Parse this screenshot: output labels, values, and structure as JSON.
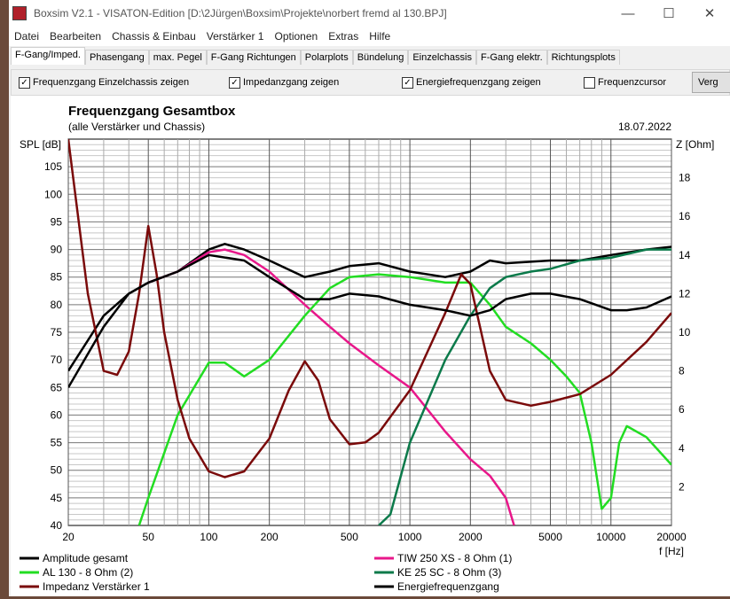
{
  "window": {
    "title": "Boxsim V2.1 - VISATON-Edition [D:\\2Jürgen\\Boxsim\\Projekte\\norbert fremd al 130.BPJ]",
    "min": "—",
    "max": "☐",
    "close": "✕"
  },
  "menu": [
    "Datei",
    "Bearbeiten",
    "Chassis & Einbau",
    "Verstärker 1",
    "Optionen",
    "Extras",
    "Hilfe"
  ],
  "tabs": [
    "F-Gang/Imped.",
    "Phasengang",
    "max. Pegel",
    "F-Gang Richtungen",
    "Polarplots",
    "Bündelung",
    "Einzelchassis",
    "F-Gang elektr.",
    "Richtungsplots"
  ],
  "checks": [
    {
      "label": "Frequenzgang Einzelchassis zeigen",
      "checked": true
    },
    {
      "label": "Impedanzgang zeigen",
      "checked": true
    },
    {
      "label": "Energiefrequenzgang zeigen",
      "checked": true
    },
    {
      "label": "Frequenzcursor",
      "checked": false
    }
  ],
  "compare_button": "Verg",
  "chart_data": {
    "type": "line",
    "title": "Frequenzgang Gesamtbox",
    "subtitle": "(alle Verstärker und Chassis)",
    "date": "18.07.2022",
    "ylabel": "SPL [dB]",
    "y2label": "Z [Ohm]",
    "xlabel": "f [Hz]",
    "xlim": [
      20,
      20000
    ],
    "ylim": [
      40,
      110
    ],
    "y2lim": [
      0,
      20
    ],
    "xticks": [
      20,
      50,
      100,
      200,
      500,
      1000,
      2000,
      5000,
      10000,
      20000
    ],
    "yticks": [
      40,
      45,
      50,
      55,
      60,
      65,
      70,
      75,
      80,
      85,
      90,
      95,
      100,
      105
    ],
    "y2ticks": [
      2,
      4,
      6,
      8,
      10,
      12,
      14,
      16,
      18
    ],
    "series": [
      {
        "name": "Amplitude gesamt",
        "color": "#000000",
        "axis": "y",
        "points": [
          [
            20,
            68
          ],
          [
            30,
            78
          ],
          [
            40,
            82
          ],
          [
            50,
            84
          ],
          [
            70,
            86
          ],
          [
            100,
            90
          ],
          [
            120,
            91
          ],
          [
            150,
            90
          ],
          [
            200,
            88
          ],
          [
            300,
            85
          ],
          [
            400,
            86
          ],
          [
            500,
            87
          ],
          [
            700,
            87.5
          ],
          [
            1000,
            86
          ],
          [
            1500,
            85
          ],
          [
            2000,
            86
          ],
          [
            2500,
            88
          ],
          [
            3000,
            87.5
          ],
          [
            5000,
            88
          ],
          [
            7000,
            88
          ],
          [
            10000,
            89
          ],
          [
            15000,
            90
          ],
          [
            20000,
            90.5
          ]
        ]
      },
      {
        "name": "TIW 250 XS - 8 Ohm (1)",
        "color": "#e8178a",
        "axis": "y",
        "points": [
          [
            50,
            84
          ],
          [
            70,
            86
          ],
          [
            100,
            89.5
          ],
          [
            120,
            90
          ],
          [
            150,
            89
          ],
          [
            200,
            86
          ],
          [
            300,
            80
          ],
          [
            400,
            76
          ],
          [
            500,
            73
          ],
          [
            700,
            69
          ],
          [
            1000,
            65
          ],
          [
            1500,
            57
          ],
          [
            2000,
            52
          ],
          [
            2500,
            49
          ],
          [
            3000,
            45
          ],
          [
            3300,
            40
          ]
        ]
      },
      {
        "name": "AL 130 - 8 Ohm (2)",
        "color": "#22dd22",
        "axis": "y",
        "points": [
          [
            45,
            40
          ],
          [
            50,
            45
          ],
          [
            70,
            60
          ],
          [
            100,
            69.5
          ],
          [
            120,
            69.5
          ],
          [
            150,
            67
          ],
          [
            200,
            70
          ],
          [
            300,
            78
          ],
          [
            400,
            83
          ],
          [
            500,
            85
          ],
          [
            700,
            85.5
          ],
          [
            1000,
            85
          ],
          [
            1500,
            84
          ],
          [
            2000,
            84
          ],
          [
            2500,
            80
          ],
          [
            3000,
            76
          ],
          [
            4000,
            73
          ],
          [
            5000,
            70
          ],
          [
            6000,
            67
          ],
          [
            7000,
            64
          ],
          [
            8000,
            55
          ],
          [
            9000,
            43
          ],
          [
            10000,
            45
          ],
          [
            11000,
            55
          ],
          [
            12000,
            58
          ],
          [
            15000,
            56
          ],
          [
            20000,
            51
          ]
        ]
      },
      {
        "name": "KE 25 SC - 8 Ohm    (3)",
        "color": "#0b7a4a",
        "axis": "y",
        "points": [
          [
            700,
            40
          ],
          [
            800,
            42
          ],
          [
            1000,
            55
          ],
          [
            1500,
            70
          ],
          [
            2000,
            78
          ],
          [
            2500,
            83
          ],
          [
            3000,
            85
          ],
          [
            4000,
            86
          ],
          [
            5000,
            86.5
          ],
          [
            7000,
            88
          ],
          [
            10000,
            88.5
          ],
          [
            15000,
            90
          ],
          [
            20000,
            90
          ]
        ]
      },
      {
        "name": "Impedanz Verstärker 1",
        "color": "#7a0a0a",
        "axis": "y2",
        "points": [
          [
            20,
            20
          ],
          [
            25,
            12
          ],
          [
            30,
            8
          ],
          [
            35,
            7.8
          ],
          [
            40,
            9
          ],
          [
            45,
            12
          ],
          [
            50,
            15.5
          ],
          [
            55,
            13
          ],
          [
            60,
            10
          ],
          [
            70,
            6.5
          ],
          [
            80,
            4.5
          ],
          [
            100,
            2.8
          ],
          [
            120,
            2.5
          ],
          [
            150,
            2.8
          ],
          [
            200,
            4.5
          ],
          [
            250,
            7
          ],
          [
            300,
            8.5
          ],
          [
            350,
            7.5
          ],
          [
            400,
            5.5
          ],
          [
            500,
            4.2
          ],
          [
            600,
            4.3
          ],
          [
            700,
            4.8
          ],
          [
            1000,
            7
          ],
          [
            1500,
            11
          ],
          [
            1800,
            13
          ],
          [
            2000,
            12.5
          ],
          [
            2500,
            8
          ],
          [
            3000,
            6.5
          ],
          [
            4000,
            6.2
          ],
          [
            5000,
            6.4
          ],
          [
            7000,
            6.8
          ],
          [
            10000,
            7.8
          ],
          [
            15000,
            9.5
          ],
          [
            20000,
            11
          ]
        ]
      },
      {
        "name": "Energiefrequenzgang",
        "color": "#000000",
        "axis": "y",
        "points": [
          [
            20,
            65
          ],
          [
            30,
            76
          ],
          [
            40,
            82
          ],
          [
            50,
            84
          ],
          [
            70,
            86
          ],
          [
            100,
            89
          ],
          [
            150,
            88
          ],
          [
            200,
            85
          ],
          [
            300,
            81
          ],
          [
            400,
            81
          ],
          [
            500,
            82
          ],
          [
            700,
            81.5
          ],
          [
            1000,
            80
          ],
          [
            1500,
            79
          ],
          [
            2000,
            78
          ],
          [
            2500,
            79
          ],
          [
            3000,
            81
          ],
          [
            4000,
            82
          ],
          [
            5000,
            82
          ],
          [
            7000,
            81
          ],
          [
            10000,
            79
          ],
          [
            12000,
            79
          ],
          [
            15000,
            79.5
          ],
          [
            20000,
            81.5
          ]
        ]
      }
    ],
    "legend_order": [
      0,
      1,
      2,
      3,
      4,
      5
    ]
  }
}
